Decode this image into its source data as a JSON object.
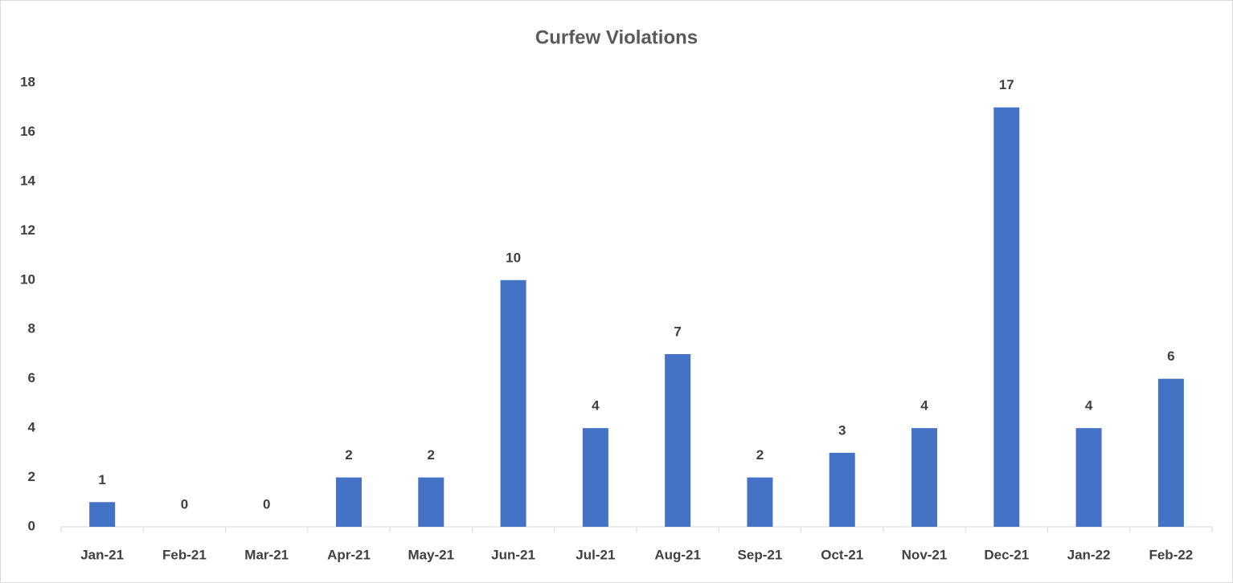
{
  "chart_data": {
    "type": "bar",
    "title": "Curfew Violations",
    "categories": [
      "Jan-21",
      "Feb-21",
      "Mar-21",
      "Apr-21",
      "May-21",
      "Jun-21",
      "Jul-21",
      "Aug-21",
      "Sep-21",
      "Oct-21",
      "Nov-21",
      "Dec-21",
      "Jan-22",
      "Feb-22"
    ],
    "values": [
      1,
      0,
      0,
      2,
      2,
      10,
      4,
      7,
      2,
      3,
      4,
      17,
      4,
      6
    ],
    "color": "#4472c4",
    "ylim": [
      0,
      18
    ],
    "yticks": [
      0,
      2,
      4,
      6,
      8,
      10,
      12,
      14,
      16,
      18
    ],
    "grid": false
  }
}
